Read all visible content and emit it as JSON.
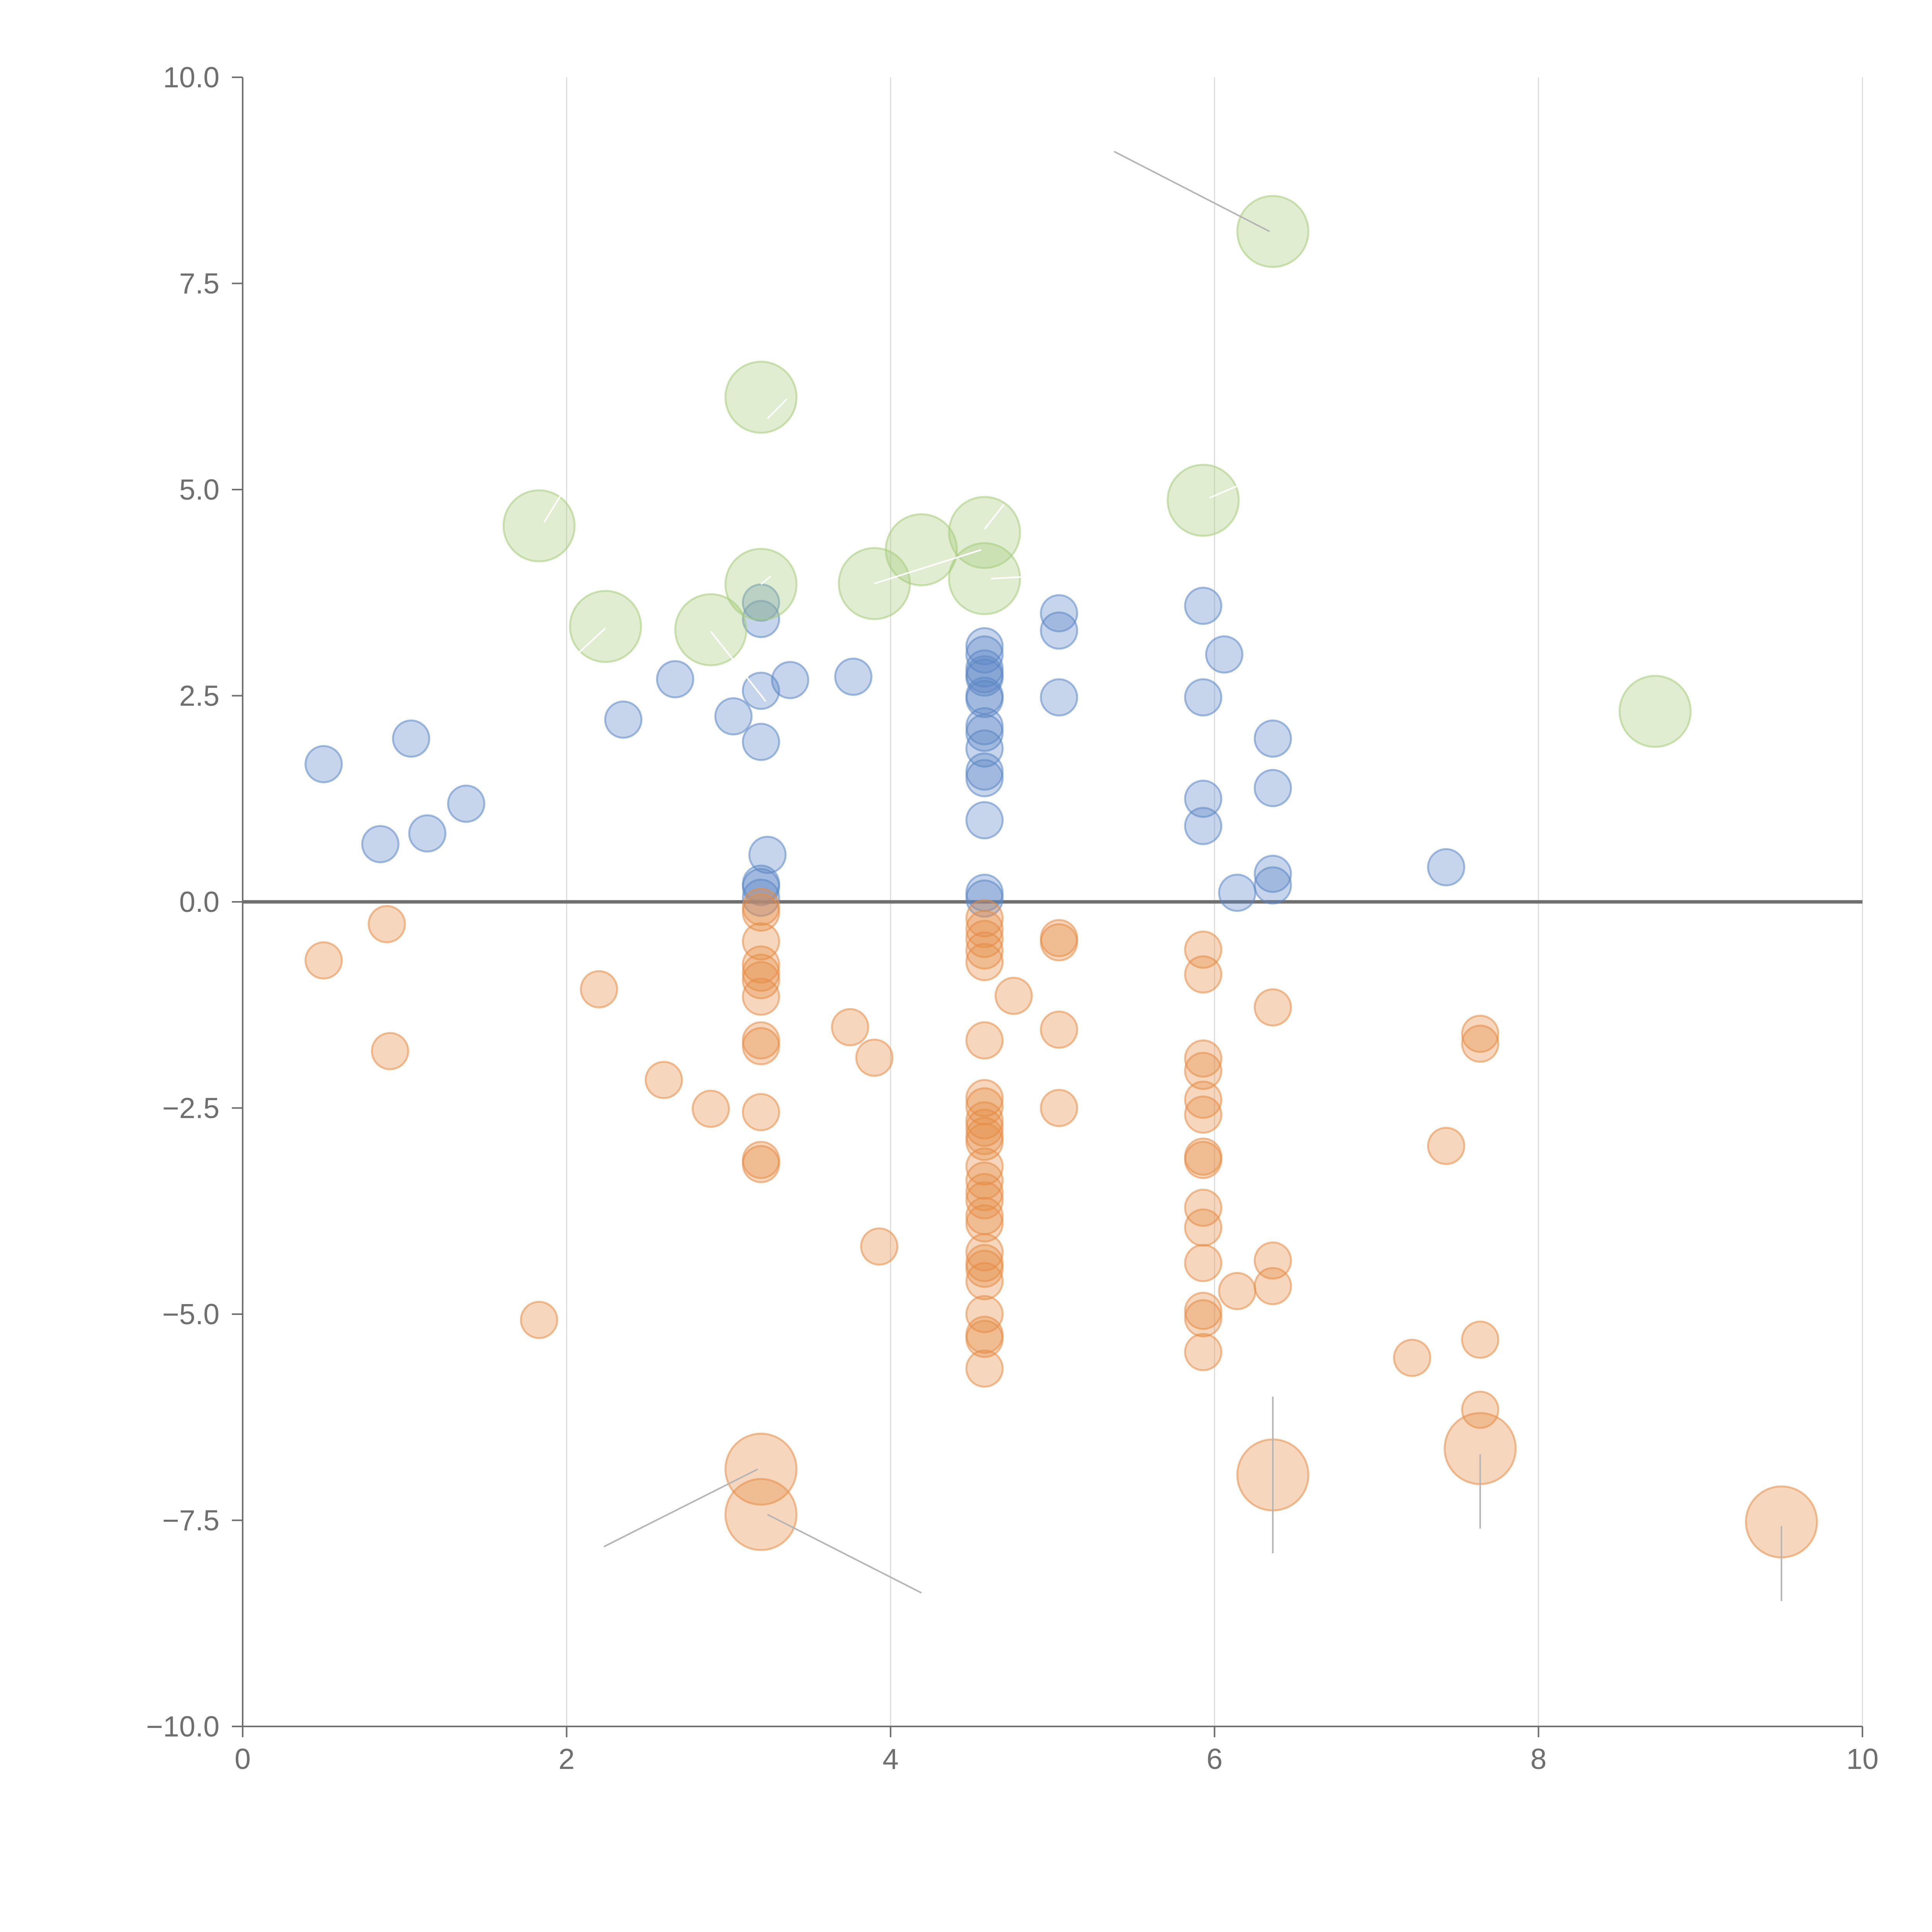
{
  "chart_data": {
    "type": "scatter",
    "title": "",
    "xlabel": "",
    "ylabel": "",
    "xlim": [
      0,
      10
    ],
    "ylim": [
      -10,
      10
    ],
    "xticks": [
      0,
      2,
      4,
      6,
      8,
      10
    ],
    "yticks": [
      -10,
      -7.5,
      -5,
      -2.5,
      0,
      2.5,
      5,
      7.5,
      10
    ],
    "x_tick_labels": [
      "0",
      "2",
      "4",
      "6",
      "8",
      "10"
    ],
    "y_tick_labels": [
      "−10.0",
      "−7.5",
      "−5.0",
      "−2.5",
      "0.0",
      "2.5",
      "5.0",
      "7.5",
      "10.0"
    ],
    "grid": "vertical",
    "reference_line_y": 0,
    "colors": {
      "positive": "#5b87c5",
      "negative": "#e58c45",
      "highlight": "#a6cc7a",
      "leader_light": "#ffffff",
      "leader_dark": "#b5b5b5"
    },
    "series": [
      {
        "name": "positive",
        "color": "#5b87c5",
        "size": 1,
        "points": [
          [
            0.5,
            1.67
          ],
          [
            0.85,
            0.7
          ],
          [
            1.04,
            1.98
          ],
          [
            1.14,
            0.83
          ],
          [
            1.38,
            1.19
          ],
          [
            2.35,
            2.21
          ],
          [
            2.67,
            2.7
          ],
          [
            3.03,
            2.25
          ],
          [
            3.2,
            3.63
          ],
          [
            3.2,
            3.43
          ],
          [
            3.2,
            2.56
          ],
          [
            3.2,
            1.94
          ],
          [
            3.24,
            0.57
          ],
          [
            3.2,
            0.22
          ],
          [
            3.2,
            0.18
          ],
          [
            3.2,
            0.05
          ],
          [
            3.38,
            2.69
          ],
          [
            3.77,
            2.73
          ],
          [
            4.58,
            3.1
          ],
          [
            4.58,
            3.0
          ],
          [
            4.58,
            2.83
          ],
          [
            4.58,
            2.76
          ],
          [
            4.58,
            2.72
          ],
          [
            4.58,
            2.5
          ],
          [
            4.58,
            2.46
          ],
          [
            4.58,
            2.13
          ],
          [
            4.58,
            2.05
          ],
          [
            4.58,
            1.86
          ],
          [
            4.58,
            1.58
          ],
          [
            4.58,
            1.5
          ],
          [
            4.58,
            0.99
          ],
          [
            4.58,
            0.11
          ],
          [
            4.58,
            0.04
          ],
          [
            5.04,
            3.5
          ],
          [
            5.04,
            3.29
          ],
          [
            5.04,
            2.48
          ],
          [
            5.93,
            3.59
          ],
          [
            5.93,
            2.48
          ],
          [
            5.93,
            1.25
          ],
          [
            5.93,
            0.92
          ],
          [
            6.06,
            3.0
          ],
          [
            6.14,
            0.11
          ],
          [
            6.36,
            1.98
          ],
          [
            6.36,
            1.38
          ],
          [
            6.36,
            0.34
          ],
          [
            6.36,
            0.2
          ],
          [
            7.43,
            0.42
          ]
        ]
      },
      {
        "name": "negative",
        "color": "#e58c45",
        "size": 1,
        "points": [
          [
            0.5,
            -0.71
          ],
          [
            0.89,
            -0.27
          ],
          [
            0.91,
            -1.81
          ],
          [
            1.83,
            -5.07
          ],
          [
            2.2,
            -1.06
          ],
          [
            2.6,
            -2.16
          ],
          [
            2.89,
            -2.51
          ],
          [
            3.2,
            -0.06
          ],
          [
            3.2,
            -0.13
          ],
          [
            3.2,
            -0.48
          ],
          [
            3.2,
            -0.76
          ],
          [
            3.2,
            -0.86
          ],
          [
            3.2,
            -0.95
          ],
          [
            3.2,
            -1.15
          ],
          [
            3.2,
            -1.68
          ],
          [
            3.2,
            -1.75
          ],
          [
            3.2,
            -2.55
          ],
          [
            3.2,
            -3.13
          ],
          [
            3.2,
            -3.18
          ],
          [
            3.75,
            -1.52
          ],
          [
            3.9,
            -1.89
          ],
          [
            3.93,
            -4.18
          ],
          [
            4.58,
            -0.2
          ],
          [
            4.58,
            -0.33
          ],
          [
            4.58,
            -0.45
          ],
          [
            4.58,
            -0.59
          ],
          [
            4.58,
            -0.73
          ],
          [
            4.76,
            -1.14
          ],
          [
            4.58,
            -1.68
          ],
          [
            4.58,
            -2.38
          ],
          [
            4.58,
            -2.48
          ],
          [
            4.58,
            -2.65
          ],
          [
            4.58,
            -2.74
          ],
          [
            4.58,
            -2.84
          ],
          [
            4.58,
            -2.91
          ],
          [
            4.58,
            -3.21
          ],
          [
            4.58,
            -3.38
          ],
          [
            4.58,
            -3.52
          ],
          [
            4.58,
            -3.62
          ],
          [
            4.58,
            -3.81
          ],
          [
            4.58,
            -3.9
          ],
          [
            4.58,
            -4.25
          ],
          [
            4.58,
            -4.38
          ],
          [
            4.58,
            -4.45
          ],
          [
            4.58,
            -4.6
          ],
          [
            4.58,
            -5.0
          ],
          [
            4.58,
            -5.25
          ],
          [
            4.58,
            -5.3
          ],
          [
            4.58,
            -5.66
          ],
          [
            5.04,
            -0.44
          ],
          [
            5.04,
            -0.49
          ],
          [
            5.04,
            -1.55
          ],
          [
            5.04,
            -2.5
          ],
          [
            5.93,
            -0.58
          ],
          [
            5.93,
            -0.88
          ],
          [
            5.93,
            -1.9
          ],
          [
            5.93,
            -2.05
          ],
          [
            5.93,
            -2.4
          ],
          [
            5.93,
            -2.58
          ],
          [
            5.93,
            -3.09
          ],
          [
            5.93,
            -3.13
          ],
          [
            5.93,
            -3.71
          ],
          [
            5.93,
            -3.95
          ],
          [
            5.93,
            -4.38
          ],
          [
            5.93,
            -4.96
          ],
          [
            5.93,
            -5.05
          ],
          [
            5.93,
            -5.46
          ],
          [
            6.14,
            -4.72
          ],
          [
            6.36,
            -1.28
          ],
          [
            6.36,
            -4.35
          ],
          [
            6.36,
            -4.66
          ],
          [
            7.22,
            -5.53
          ],
          [
            7.43,
            -2.96
          ],
          [
            7.64,
            -1.6
          ],
          [
            7.64,
            -1.72
          ],
          [
            7.64,
            -5.31
          ],
          [
            7.64,
            -6.16
          ]
        ]
      },
      {
        "name": "highlight-positive",
        "color": "#a6cc7a",
        "size": 2,
        "points": [
          [
            1.83,
            4.56
          ],
          [
            2.24,
            3.34
          ],
          [
            2.89,
            3.3
          ],
          [
            3.2,
            6.12
          ],
          [
            3.2,
            3.85
          ],
          [
            3.9,
            3.86
          ],
          [
            4.19,
            4.27
          ],
          [
            4.58,
            4.48
          ],
          [
            4.58,
            3.92
          ],
          [
            5.93,
            4.87
          ],
          [
            6.36,
            8.13
          ],
          [
            8.72,
            2.31
          ]
        ]
      },
      {
        "name": "highlight-negative",
        "color": "#e58c45",
        "size": 2,
        "points": [
          [
            3.2,
            -6.88
          ],
          [
            3.2,
            -7.43
          ],
          [
            6.36,
            -6.95
          ],
          [
            7.64,
            -6.63
          ],
          [
            9.5,
            -7.52
          ]
        ]
      }
    ],
    "leader_lines": [
      {
        "tone": "light",
        "from": [
          3.24,
          5.86
        ],
        "to": [
          3.36,
          6.1
        ]
      },
      {
        "tone": "light",
        "from": [
          1.86,
          4.6
        ],
        "to": [
          1.97,
          4.95
        ]
      },
      {
        "tone": "light",
        "from": [
          2.24,
          3.32
        ],
        "to": [
          2.03,
          2.94
        ]
      },
      {
        "tone": "light",
        "from": [
          2.89,
          3.28
        ],
        "to": [
          3.23,
          2.43
        ]
      },
      {
        "tone": "light",
        "from": [
          3.2,
          3.85
        ],
        "to": [
          3.26,
          3.95
        ]
      },
      {
        "tone": "light",
        "from": [
          3.9,
          3.86
        ],
        "to": [
          4.56,
          4.27
        ]
      },
      {
        "tone": "light",
        "from": [
          4.58,
          4.52
        ],
        "to": [
          4.7,
          4.82
        ]
      },
      {
        "tone": "light",
        "from": [
          4.62,
          3.92
        ],
        "to": [
          4.9,
          3.95
        ]
      },
      {
        "tone": "light",
        "from": [
          5.97,
          4.9
        ],
        "to": [
          6.16,
          5.06
        ]
      },
      {
        "tone": "dark",
        "from": [
          6.34,
          8.13
        ],
        "to": [
          5.38,
          9.1
        ]
      },
      {
        "tone": "dark",
        "from": [
          3.18,
          -6.88
        ],
        "to": [
          2.23,
          -7.82
        ]
      },
      {
        "tone": "dark",
        "from": [
          3.24,
          -7.43
        ],
        "to": [
          4.19,
          -8.38
        ]
      },
      {
        "tone": "dark",
        "from": [
          6.36,
          -6.0
        ],
        "to": [
          6.36,
          -7.9
        ]
      },
      {
        "tone": "dark",
        "from": [
          7.64,
          -6.7
        ],
        "to": [
          7.64,
          -7.6
        ]
      },
      {
        "tone": "dark",
        "from": [
          9.5,
          -7.57
        ],
        "to": [
          9.5,
          -8.48
        ]
      }
    ]
  }
}
